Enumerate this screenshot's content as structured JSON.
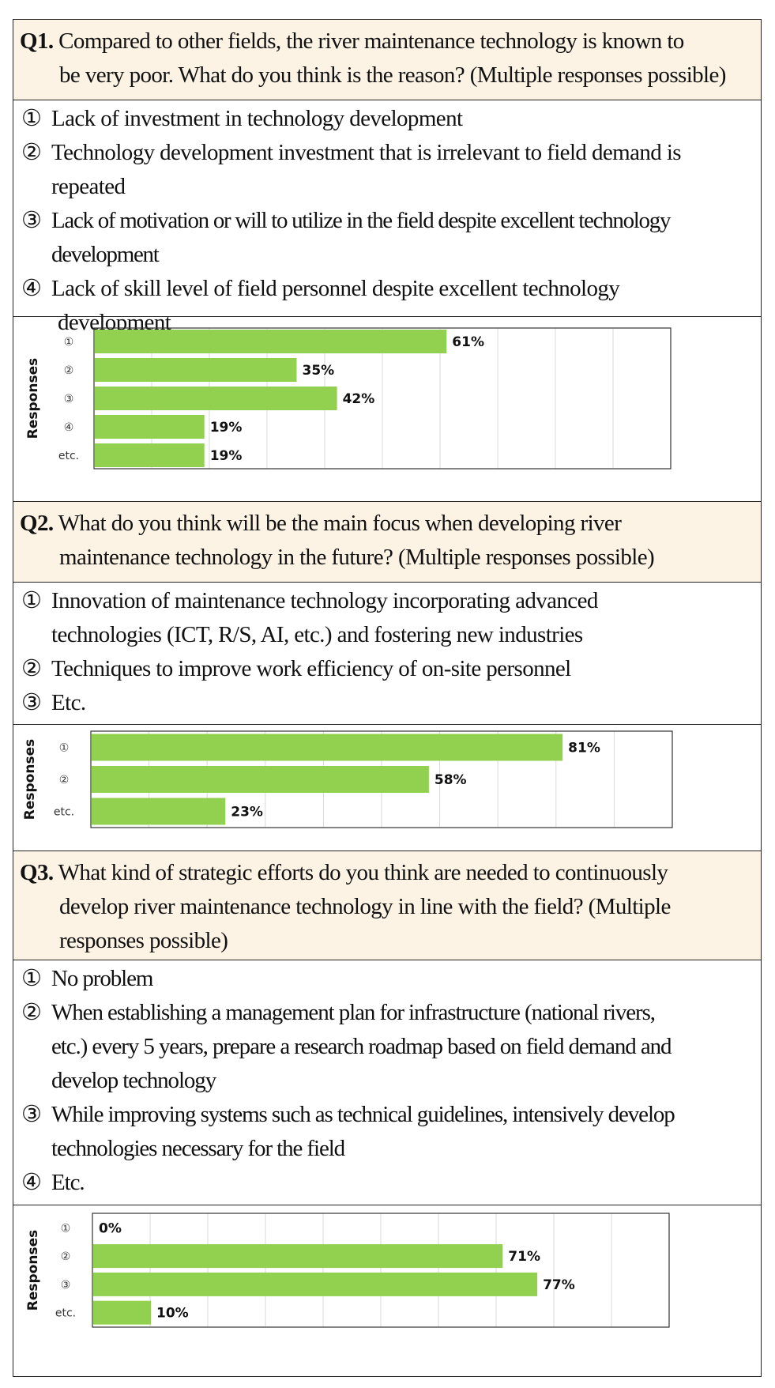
{
  "questions": [
    {
      "label": "Q1.",
      "text_line1": "Compared to other fields, the river maintenance technology is known to",
      "text_line2": "be very poor. What do you think is the reason? (Multiple responses possible)",
      "text_line3": "",
      "options": [
        {
          "mark": "①",
          "lines": [
            "Lack of investment in technology development"
          ]
        },
        {
          "mark": "②",
          "lines": [
            "Technology development investment that is irrelevant to field demand is",
            "repeated"
          ]
        },
        {
          "mark": "③",
          "lines": [
            "Lack of motivation or will to utilize in the field despite excellent technology",
            "development"
          ]
        },
        {
          "mark": "④",
          "lines": [
            "Lack of skill level of field personnel despite excellent technology",
            "development"
          ]
        }
      ]
    },
    {
      "label": "Q2.",
      "text_line1": "What do you think will be the main focus when developing river",
      "text_line2": "maintenance technology in the future? (Multiple responses possible)",
      "text_line3": "",
      "options": [
        {
          "mark": "①",
          "lines": [
            "Innovation of maintenance technology incorporating advanced",
            "technologies (ICT, R/S, AI, etc.) and fostering new industries"
          ]
        },
        {
          "mark": "②",
          "lines": [
            "Techniques to improve work efficiency of on-site personnel"
          ]
        },
        {
          "mark": "③",
          "lines": [
            "Etc."
          ]
        }
      ]
    },
    {
      "label": "Q3.",
      "text_line1": "What kind of strategic efforts do you think are needed to continuously",
      "text_line2": "develop river maintenance technology in line with the field? (Multiple",
      "text_line3": "responses possible)",
      "options": [
        {
          "mark": "①",
          "lines": [
            "No problem"
          ]
        },
        {
          "mark": "②",
          "lines": [
            "When establishing a management plan for infrastructure (national rivers,",
            "etc.) every 5 years, prepare a research roadmap based on field demand and",
            "develop technology"
          ]
        },
        {
          "mark": "③",
          "lines": [
            "While improving systems such as technical guidelines, intensively develop",
            "technologies necessary for the field"
          ]
        },
        {
          "mark": "④",
          "lines": [
            "Etc."
          ]
        }
      ]
    }
  ],
  "colors": {
    "bar": "#92d050",
    "border": "#222222",
    "question_bg": "#fdf3e4",
    "grid": "#d9d9d9"
  },
  "chart_data": [
    {
      "type": "bar",
      "orientation": "horizontal",
      "ylabel": "Responses",
      "categories": [
        "①",
        "②",
        "③",
        "④",
        "etc."
      ],
      "values": [
        61,
        35,
        42,
        19,
        19
      ],
      "value_labels": [
        "61%",
        "35%",
        "42%",
        "19%",
        "19%"
      ],
      "xlim": [
        0,
        100
      ],
      "grid": true
    },
    {
      "type": "bar",
      "orientation": "horizontal",
      "ylabel": "Responses",
      "categories": [
        "①",
        "②",
        "etc."
      ],
      "values": [
        81,
        58,
        23
      ],
      "value_labels": [
        "81%",
        "58%",
        "23%"
      ],
      "xlim": [
        0,
        100
      ],
      "grid": true
    },
    {
      "type": "bar",
      "orientation": "horizontal",
      "ylabel": "Responses",
      "categories": [
        "①",
        "②",
        "③",
        "etc."
      ],
      "values": [
        0,
        71,
        77,
        10
      ],
      "value_labels": [
        "0%",
        "71%",
        "77%",
        "10%"
      ],
      "xlim": [
        0,
        100
      ],
      "grid": true
    }
  ]
}
